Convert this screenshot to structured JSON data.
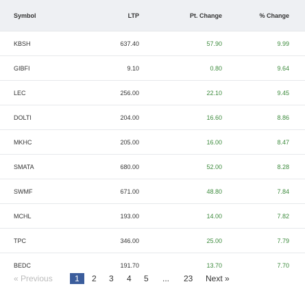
{
  "table": {
    "columns": [
      "Symbol",
      "LTP",
      "Pt. Change",
      "% Change"
    ],
    "rows": [
      [
        "KBSH",
        "637.40",
        "57.90",
        "9.99"
      ],
      [
        "GIBFI",
        "9.10",
        "0.80",
        "9.64"
      ],
      [
        "LEC",
        "256.00",
        "22.10",
        "9.45"
      ],
      [
        "DOLTI",
        "204.00",
        "16.60",
        "8.86"
      ],
      [
        "MKHC",
        "205.00",
        "16.00",
        "8.47"
      ],
      [
        "SMATA",
        "680.00",
        "52.00",
        "8.28"
      ],
      [
        "SWMF",
        "671.00",
        "48.80",
        "7.84"
      ],
      [
        "MCHL",
        "193.00",
        "14.00",
        "7.82"
      ],
      [
        "TPC",
        "346.00",
        "25.00",
        "7.79"
      ],
      [
        "BEDC",
        "191.70",
        "13.70",
        "7.70"
      ]
    ]
  },
  "pagination": {
    "previous": "« Previous",
    "pages": [
      "1",
      "2",
      "3",
      "4",
      "5"
    ],
    "ellipsis": "...",
    "last": "23",
    "next": "Next »"
  }
}
